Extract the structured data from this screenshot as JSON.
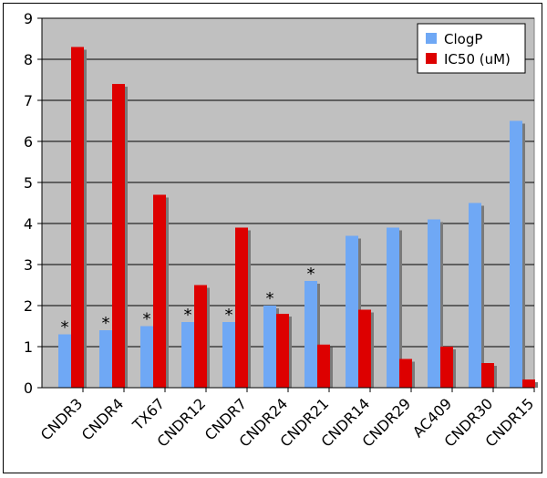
{
  "chart_data": {
    "type": "bar",
    "categories": [
      "CNDR3",
      "CNDR4",
      "TX67",
      "CNDR12",
      "CNDR7",
      "CNDR24",
      "CNDR21",
      "CNDR14",
      "CNDR29",
      "AC409",
      "CNDR30",
      "CNDR15"
    ],
    "series": [
      {
        "name": "ClogP",
        "color": "#6fa8f5",
        "values": [
          1.3,
          1.4,
          1.5,
          1.6,
          1.6,
          2.0,
          2.6,
          3.7,
          3.9,
          4.1,
          4.5,
          6.5
        ]
      },
      {
        "name": "IC50 (uM)",
        "color": "#dd0000",
        "values": [
          8.3,
          7.4,
          4.7,
          2.5,
          3.9,
          1.8,
          1.05,
          1.9,
          0.7,
          1.0,
          0.6,
          0.2
        ]
      }
    ],
    "annotations": [
      "*",
      "*",
      "*",
      "*",
      "*",
      "*",
      "*"
    ],
    "annotation_categories": [
      "CNDR3",
      "CNDR4",
      "TX67",
      "CNDR12",
      "CNDR7",
      "CNDR24",
      "CNDR21"
    ],
    "yticks": [
      "0",
      "1",
      "2",
      "3",
      "4",
      "5",
      "6",
      "7",
      "8",
      "9"
    ],
    "ylim": [
      0,
      9
    ],
    "grid": true,
    "plot_background": "#c0c0c0",
    "legend_position": "top-right"
  }
}
